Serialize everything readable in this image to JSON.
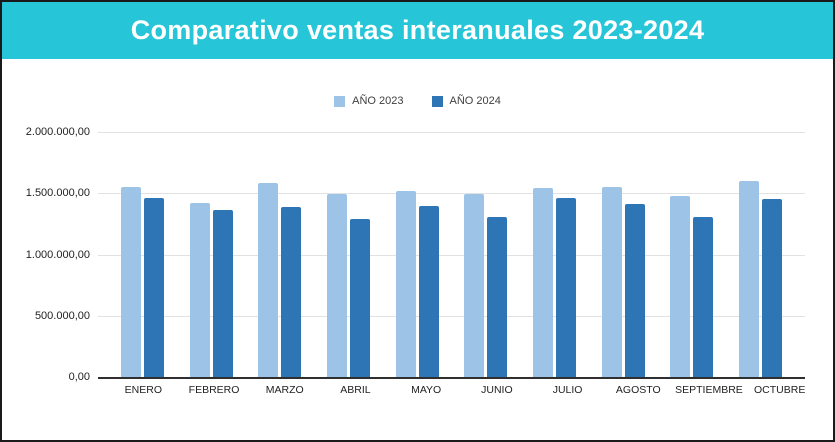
{
  "header": {
    "title": "Comparativo ventas interanuales 2023-2024",
    "bg_color": "#26c6d8",
    "text_color": "#ffffff"
  },
  "legend": {
    "items": [
      {
        "label": "AÑO 2023",
        "color": "#9dc3e6"
      },
      {
        "label": "AÑO 2024",
        "color": "#2e75b6"
      }
    ]
  },
  "chart_data": {
    "type": "bar",
    "title": "Comparativo ventas interanuales 2023-2024",
    "categories": [
      "ENERO",
      "FEBRERO",
      "MARZO",
      "ABRIL",
      "MAYO",
      "JUNIO",
      "JULIO",
      "AGOSTO",
      "SEPTIEMBRE",
      "OCTUBRE"
    ],
    "series": [
      {
        "name": "AÑO 2023",
        "color": "#9dc3e6",
        "values": [
          1550000,
          1420000,
          1580000,
          1490000,
          1520000,
          1490000,
          1540000,
          1550000,
          1480000,
          1600000
        ]
      },
      {
        "name": "AÑO 2024",
        "color": "#2e75b6",
        "values": [
          1460000,
          1360000,
          1390000,
          1290000,
          1400000,
          1310000,
          1460000,
          1410000,
          1310000,
          1450000
        ]
      }
    ],
    "xlabel": "",
    "ylabel": "",
    "ylim": [
      0,
      2000000
    ],
    "ytick_step": 500000,
    "ytick_labels_top_to_bottom": [
      "2.000.000,00",
      "1.500.000,00",
      "1.000.000,00",
      "500.000,00",
      "0,00"
    ],
    "grid": true,
    "gridline_color": "#e2e2e2",
    "baseline_color": "#2f2f2f",
    "legend_position": "top-center"
  }
}
